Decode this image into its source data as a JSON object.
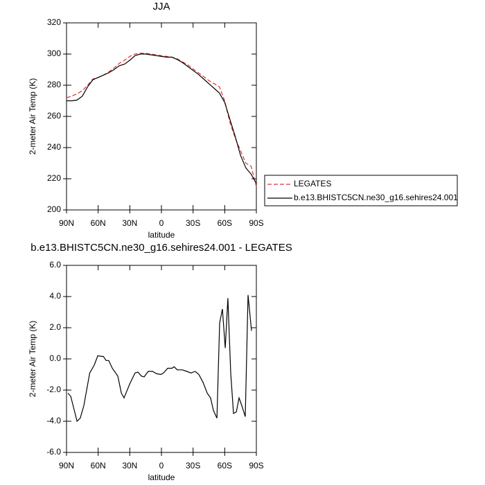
{
  "chart_data": [
    {
      "type": "line",
      "title": "JJA",
      "xlabel": "latitude",
      "ylabel": "2-meter Air Temp (K)",
      "x": [
        90,
        85,
        80,
        75,
        70,
        65,
        60,
        55,
        50,
        45,
        40,
        35,
        30,
        25,
        20,
        15,
        10,
        5,
        0,
        -5,
        -10,
        -15,
        -20,
        -25,
        -30,
        -35,
        -40,
        -45,
        -50,
        -55,
        -60,
        -65,
        -70,
        -75,
        -80,
        -85,
        -90
      ],
      "series": [
        {
          "name": "LEGATES",
          "color": "#e03030",
          "dashed": true,
          "values": [
            272,
            273,
            274.5,
            276.5,
            280,
            284,
            285,
            286.5,
            288.5,
            291,
            294,
            296,
            298.5,
            300,
            300.5,
            300.5,
            300,
            299.5,
            299,
            298.5,
            298,
            297,
            295,
            293,
            290.5,
            288,
            285.5,
            283,
            281,
            279,
            270,
            256,
            246,
            238,
            230,
            228,
            215
          ]
        },
        {
          "name": "b.e13.BHISTC5CN.ne30_g16.sehires24.001",
          "color": "#000000",
          "dashed": false,
          "values": [
            270,
            270,
            270.5,
            273,
            279,
            283.5,
            285,
            286.5,
            288,
            290,
            292.5,
            293.5,
            296,
            299,
            300,
            300,
            299.5,
            299,
            298.5,
            298,
            298,
            296.5,
            294.5,
            292,
            289.5,
            287,
            284,
            281,
            278,
            275,
            269,
            258,
            247,
            235,
            227,
            223,
            217
          ]
        }
      ],
      "xlim": [
        90,
        -90
      ],
      "xticks": [
        {
          "value": 90,
          "label": "90N"
        },
        {
          "value": 60,
          "label": "60N"
        },
        {
          "value": 30,
          "label": "30N"
        },
        0,
        {
          "value": -30,
          "label": "30S"
        },
        {
          "value": -60,
          "label": "60S"
        },
        {
          "value": -90,
          "label": "90S"
        }
      ],
      "ylim": [
        200,
        320
      ],
      "yticks": [
        200,
        220,
        240,
        260,
        280,
        300,
        320
      ],
      "legend": "outside lower right"
    },
    {
      "type": "line",
      "title": "b.e13.BHISTC5CN.ne30_g16.sehires24.001 - LEGATES",
      "xlabel": "latitude",
      "ylabel": "2-meter Air Temp (K)",
      "x": [
        88.7,
        86,
        80,
        77,
        73.6,
        68,
        63.7,
        60.4,
        55,
        52.5,
        50,
        46.6,
        41.4,
        38,
        35.5,
        30,
        25,
        22.3,
        19,
        16.4,
        12.5,
        8.5,
        4.6,
        0.6,
        -2,
        -6,
        -10,
        -12,
        -15,
        -20,
        -24,
        -28,
        -32,
        -35.5,
        -39.4,
        -43.4,
        -46.6,
        -49.3,
        -52.6,
        -55.2,
        -57.8,
        -60.5,
        -63,
        -65.7,
        -68.3,
        -71,
        -73.6,
        -76.2,
        -79.5,
        -82.1,
        -85.4
      ],
      "series": [
        {
          "name": "b.e13.BHISTC5CN.ne30_g16.sehires24.001 - LEGATES",
          "color": "#000000",
          "dashed": false,
          "values": [
            -2.2,
            -2.4,
            -4.0,
            -3.8,
            -3.0,
            -0.9,
            -0.4,
            0.2,
            0.15,
            -0.1,
            -0.1,
            -0.6,
            -1.1,
            -2.2,
            -2.5,
            -1.6,
            -0.9,
            -0.85,
            -1.1,
            -1.15,
            -0.8,
            -0.8,
            -0.95,
            -1.0,
            -0.9,
            -0.6,
            -0.6,
            -0.5,
            -0.7,
            -0.7,
            -0.8,
            -0.9,
            -0.8,
            -1.0,
            -1.5,
            -2.2,
            -2.5,
            -3.3,
            -3.8,
            2.3,
            3.2,
            0.7,
            3.9,
            -0.9,
            -3.5,
            -3.4,
            -2.5,
            -3.0,
            -3.7,
            4.1,
            1.8
          ]
        }
      ],
      "xlim": [
        90,
        -90
      ],
      "xticks": [
        {
          "value": 90,
          "label": "90N"
        },
        {
          "value": 60,
          "label": "60N"
        },
        {
          "value": 30,
          "label": "30N"
        },
        0,
        {
          "value": -30,
          "label": "30S"
        },
        {
          "value": -60,
          "label": "60S"
        },
        {
          "value": -90,
          "label": "90S"
        }
      ],
      "ylim": [
        -6,
        6
      ],
      "yticks": [
        {
          "value": -6,
          "label": "-6.0"
        },
        {
          "value": -4,
          "label": "-4.0"
        },
        {
          "value": -2,
          "label": "-2.0"
        },
        {
          "value": 0,
          "label": "0.0"
        },
        {
          "value": 2,
          "label": "2.0"
        },
        {
          "value": 4,
          "label": "4.0"
        },
        {
          "value": 6,
          "label": "6.0"
        }
      ]
    }
  ]
}
